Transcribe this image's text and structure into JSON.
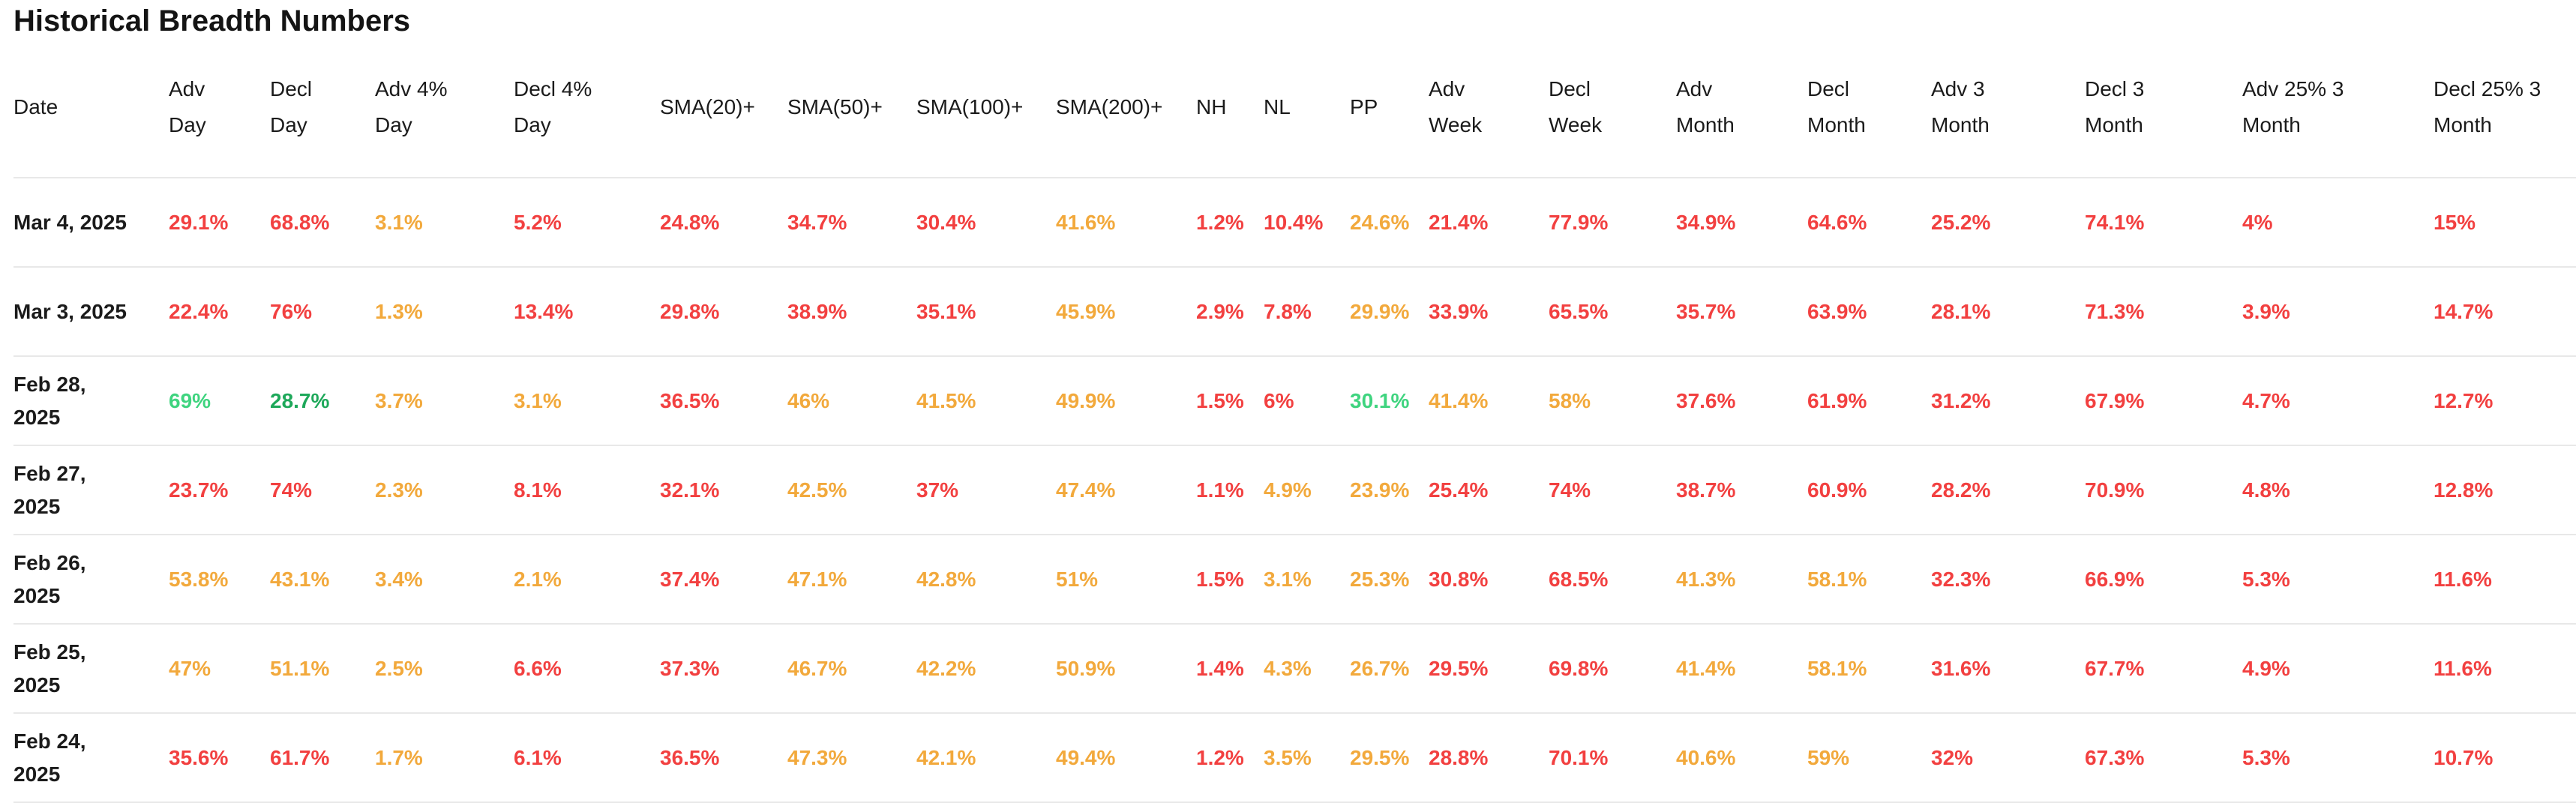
{
  "title": "Historical Breadth Numbers",
  "colors": {
    "red": "#f24040",
    "orange": "#f2a93c",
    "greenBright": "#3fd47f",
    "green": "#1ea85a",
    "text": "#1b1b1b",
    "divider": "#e8e8e8"
  },
  "table": {
    "columns": [
      {
        "id": "date",
        "lines": [
          "Date"
        ]
      },
      {
        "id": "adv-day",
        "lines": [
          "Adv",
          "Day"
        ]
      },
      {
        "id": "decl-day",
        "lines": [
          "Decl",
          "Day"
        ]
      },
      {
        "id": "adv-4pct-day",
        "lines": [
          "Adv 4%",
          "Day"
        ]
      },
      {
        "id": "decl-4pct-day",
        "lines": [
          "Decl 4%",
          "Day"
        ]
      },
      {
        "id": "sma20-plus",
        "lines": [
          "SMA(20)+"
        ]
      },
      {
        "id": "sma50-plus",
        "lines": [
          "SMA(50)+"
        ]
      },
      {
        "id": "sma100-plus",
        "lines": [
          "SMA(100)+"
        ]
      },
      {
        "id": "sma200-plus",
        "lines": [
          "SMA(200)+"
        ]
      },
      {
        "id": "nh",
        "lines": [
          "NH"
        ]
      },
      {
        "id": "nl",
        "lines": [
          "NL"
        ]
      },
      {
        "id": "pp",
        "lines": [
          "PP"
        ]
      },
      {
        "id": "adv-week",
        "lines": [
          "Adv",
          "Week"
        ]
      },
      {
        "id": "decl-week",
        "lines": [
          "Decl",
          "Week"
        ]
      },
      {
        "id": "adv-month",
        "lines": [
          "Adv",
          "Month"
        ]
      },
      {
        "id": "decl-month",
        "lines": [
          "Decl",
          "Month"
        ]
      },
      {
        "id": "adv-3-month",
        "lines": [
          "Adv 3",
          "Month"
        ]
      },
      {
        "id": "decl-3-month",
        "lines": [
          "Decl 3",
          "Month"
        ]
      },
      {
        "id": "adv-25pct-3-month",
        "lines": [
          "Adv 25% 3",
          "Month"
        ]
      },
      {
        "id": "decl-25pct-3-month",
        "lines": [
          "Decl 25% 3",
          "Month"
        ]
      }
    ],
    "rows": [
      {
        "date_lines": [
          "Mar 4, 2025"
        ],
        "cells": [
          {
            "v": "29.1%",
            "c": "red"
          },
          {
            "v": "68.8%",
            "c": "red"
          },
          {
            "v": "3.1%",
            "c": "orange"
          },
          {
            "v": "5.2%",
            "c": "red"
          },
          {
            "v": "24.8%",
            "c": "red"
          },
          {
            "v": "34.7%",
            "c": "red"
          },
          {
            "v": "30.4%",
            "c": "red"
          },
          {
            "v": "41.6%",
            "c": "orange"
          },
          {
            "v": "1.2%",
            "c": "red"
          },
          {
            "v": "10.4%",
            "c": "red"
          },
          {
            "v": "24.6%",
            "c": "orange"
          },
          {
            "v": "21.4%",
            "c": "red"
          },
          {
            "v": "77.9%",
            "c": "red"
          },
          {
            "v": "34.9%",
            "c": "red"
          },
          {
            "v": "64.6%",
            "c": "red"
          },
          {
            "v": "25.2%",
            "c": "red"
          },
          {
            "v": "74.1%",
            "c": "red"
          },
          {
            "v": "4%",
            "c": "red"
          },
          {
            "v": "15%",
            "c": "red"
          }
        ]
      },
      {
        "date_lines": [
          "Mar 3, 2025"
        ],
        "cells": [
          {
            "v": "22.4%",
            "c": "red"
          },
          {
            "v": "76%",
            "c": "red"
          },
          {
            "v": "1.3%",
            "c": "orange"
          },
          {
            "v": "13.4%",
            "c": "red"
          },
          {
            "v": "29.8%",
            "c": "red"
          },
          {
            "v": "38.9%",
            "c": "red"
          },
          {
            "v": "35.1%",
            "c": "red"
          },
          {
            "v": "45.9%",
            "c": "orange"
          },
          {
            "v": "2.9%",
            "c": "red"
          },
          {
            "v": "7.8%",
            "c": "red"
          },
          {
            "v": "29.9%",
            "c": "orange"
          },
          {
            "v": "33.9%",
            "c": "red"
          },
          {
            "v": "65.5%",
            "c": "red"
          },
          {
            "v": "35.7%",
            "c": "red"
          },
          {
            "v": "63.9%",
            "c": "red"
          },
          {
            "v": "28.1%",
            "c": "red"
          },
          {
            "v": "71.3%",
            "c": "red"
          },
          {
            "v": "3.9%",
            "c": "red"
          },
          {
            "v": "14.7%",
            "c": "red"
          }
        ]
      },
      {
        "date_lines": [
          "Feb 28,",
          "2025"
        ],
        "cells": [
          {
            "v": "69%",
            "c": "greenBright"
          },
          {
            "v": "28.7%",
            "c": "green"
          },
          {
            "v": "3.7%",
            "c": "orange"
          },
          {
            "v": "3.1%",
            "c": "orange"
          },
          {
            "v": "36.5%",
            "c": "red"
          },
          {
            "v": "46%",
            "c": "orange"
          },
          {
            "v": "41.5%",
            "c": "orange"
          },
          {
            "v": "49.9%",
            "c": "orange"
          },
          {
            "v": "1.5%",
            "c": "red"
          },
          {
            "v": "6%",
            "c": "red"
          },
          {
            "v": "30.1%",
            "c": "greenBright"
          },
          {
            "v": "41.4%",
            "c": "orange"
          },
          {
            "v": "58%",
            "c": "orange"
          },
          {
            "v": "37.6%",
            "c": "red"
          },
          {
            "v": "61.9%",
            "c": "red"
          },
          {
            "v": "31.2%",
            "c": "red"
          },
          {
            "v": "67.9%",
            "c": "red"
          },
          {
            "v": "4.7%",
            "c": "red"
          },
          {
            "v": "12.7%",
            "c": "red"
          }
        ]
      },
      {
        "date_lines": [
          "Feb 27,",
          "2025"
        ],
        "cells": [
          {
            "v": "23.7%",
            "c": "red"
          },
          {
            "v": "74%",
            "c": "red"
          },
          {
            "v": "2.3%",
            "c": "orange"
          },
          {
            "v": "8.1%",
            "c": "red"
          },
          {
            "v": "32.1%",
            "c": "red"
          },
          {
            "v": "42.5%",
            "c": "orange"
          },
          {
            "v": "37%",
            "c": "red"
          },
          {
            "v": "47.4%",
            "c": "orange"
          },
          {
            "v": "1.1%",
            "c": "red"
          },
          {
            "v": "4.9%",
            "c": "orange"
          },
          {
            "v": "23.9%",
            "c": "orange"
          },
          {
            "v": "25.4%",
            "c": "red"
          },
          {
            "v": "74%",
            "c": "red"
          },
          {
            "v": "38.7%",
            "c": "red"
          },
          {
            "v": "60.9%",
            "c": "red"
          },
          {
            "v": "28.2%",
            "c": "red"
          },
          {
            "v": "70.9%",
            "c": "red"
          },
          {
            "v": "4.8%",
            "c": "red"
          },
          {
            "v": "12.8%",
            "c": "red"
          }
        ]
      },
      {
        "date_lines": [
          "Feb 26,",
          "2025"
        ],
        "cells": [
          {
            "v": "53.8%",
            "c": "orange"
          },
          {
            "v": "43.1%",
            "c": "orange"
          },
          {
            "v": "3.4%",
            "c": "orange"
          },
          {
            "v": "2.1%",
            "c": "orange"
          },
          {
            "v": "37.4%",
            "c": "red"
          },
          {
            "v": "47.1%",
            "c": "orange"
          },
          {
            "v": "42.8%",
            "c": "orange"
          },
          {
            "v": "51%",
            "c": "orange"
          },
          {
            "v": "1.5%",
            "c": "red"
          },
          {
            "v": "3.1%",
            "c": "orange"
          },
          {
            "v": "25.3%",
            "c": "orange"
          },
          {
            "v": "30.8%",
            "c": "red"
          },
          {
            "v": "68.5%",
            "c": "red"
          },
          {
            "v": "41.3%",
            "c": "orange"
          },
          {
            "v": "58.1%",
            "c": "orange"
          },
          {
            "v": "32.3%",
            "c": "red"
          },
          {
            "v": "66.9%",
            "c": "red"
          },
          {
            "v": "5.3%",
            "c": "red"
          },
          {
            "v": "11.6%",
            "c": "red"
          }
        ]
      },
      {
        "date_lines": [
          "Feb 25,",
          "2025"
        ],
        "cells": [
          {
            "v": "47%",
            "c": "orange"
          },
          {
            "v": "51.1%",
            "c": "orange"
          },
          {
            "v": "2.5%",
            "c": "orange"
          },
          {
            "v": "6.6%",
            "c": "red"
          },
          {
            "v": "37.3%",
            "c": "red"
          },
          {
            "v": "46.7%",
            "c": "orange"
          },
          {
            "v": "42.2%",
            "c": "orange"
          },
          {
            "v": "50.9%",
            "c": "orange"
          },
          {
            "v": "1.4%",
            "c": "red"
          },
          {
            "v": "4.3%",
            "c": "orange"
          },
          {
            "v": "26.7%",
            "c": "orange"
          },
          {
            "v": "29.5%",
            "c": "red"
          },
          {
            "v": "69.8%",
            "c": "red"
          },
          {
            "v": "41.4%",
            "c": "orange"
          },
          {
            "v": "58.1%",
            "c": "orange"
          },
          {
            "v": "31.6%",
            "c": "red"
          },
          {
            "v": "67.7%",
            "c": "red"
          },
          {
            "v": "4.9%",
            "c": "red"
          },
          {
            "v": "11.6%",
            "c": "red"
          }
        ]
      },
      {
        "date_lines": [
          "Feb 24,",
          "2025"
        ],
        "cells": [
          {
            "v": "35.6%",
            "c": "red"
          },
          {
            "v": "61.7%",
            "c": "red"
          },
          {
            "v": "1.7%",
            "c": "orange"
          },
          {
            "v": "6.1%",
            "c": "red"
          },
          {
            "v": "36.5%",
            "c": "red"
          },
          {
            "v": "47.3%",
            "c": "orange"
          },
          {
            "v": "42.1%",
            "c": "orange"
          },
          {
            "v": "49.4%",
            "c": "orange"
          },
          {
            "v": "1.2%",
            "c": "red"
          },
          {
            "v": "3.5%",
            "c": "orange"
          },
          {
            "v": "29.5%",
            "c": "orange"
          },
          {
            "v": "28.8%",
            "c": "red"
          },
          {
            "v": "70.1%",
            "c": "red"
          },
          {
            "v": "40.6%",
            "c": "orange"
          },
          {
            "v": "59%",
            "c": "orange"
          },
          {
            "v": "32%",
            "c": "red"
          },
          {
            "v": "67.3%",
            "c": "red"
          },
          {
            "v": "5.3%",
            "c": "red"
          },
          {
            "v": "10.7%",
            "c": "red"
          }
        ]
      }
    ]
  }
}
